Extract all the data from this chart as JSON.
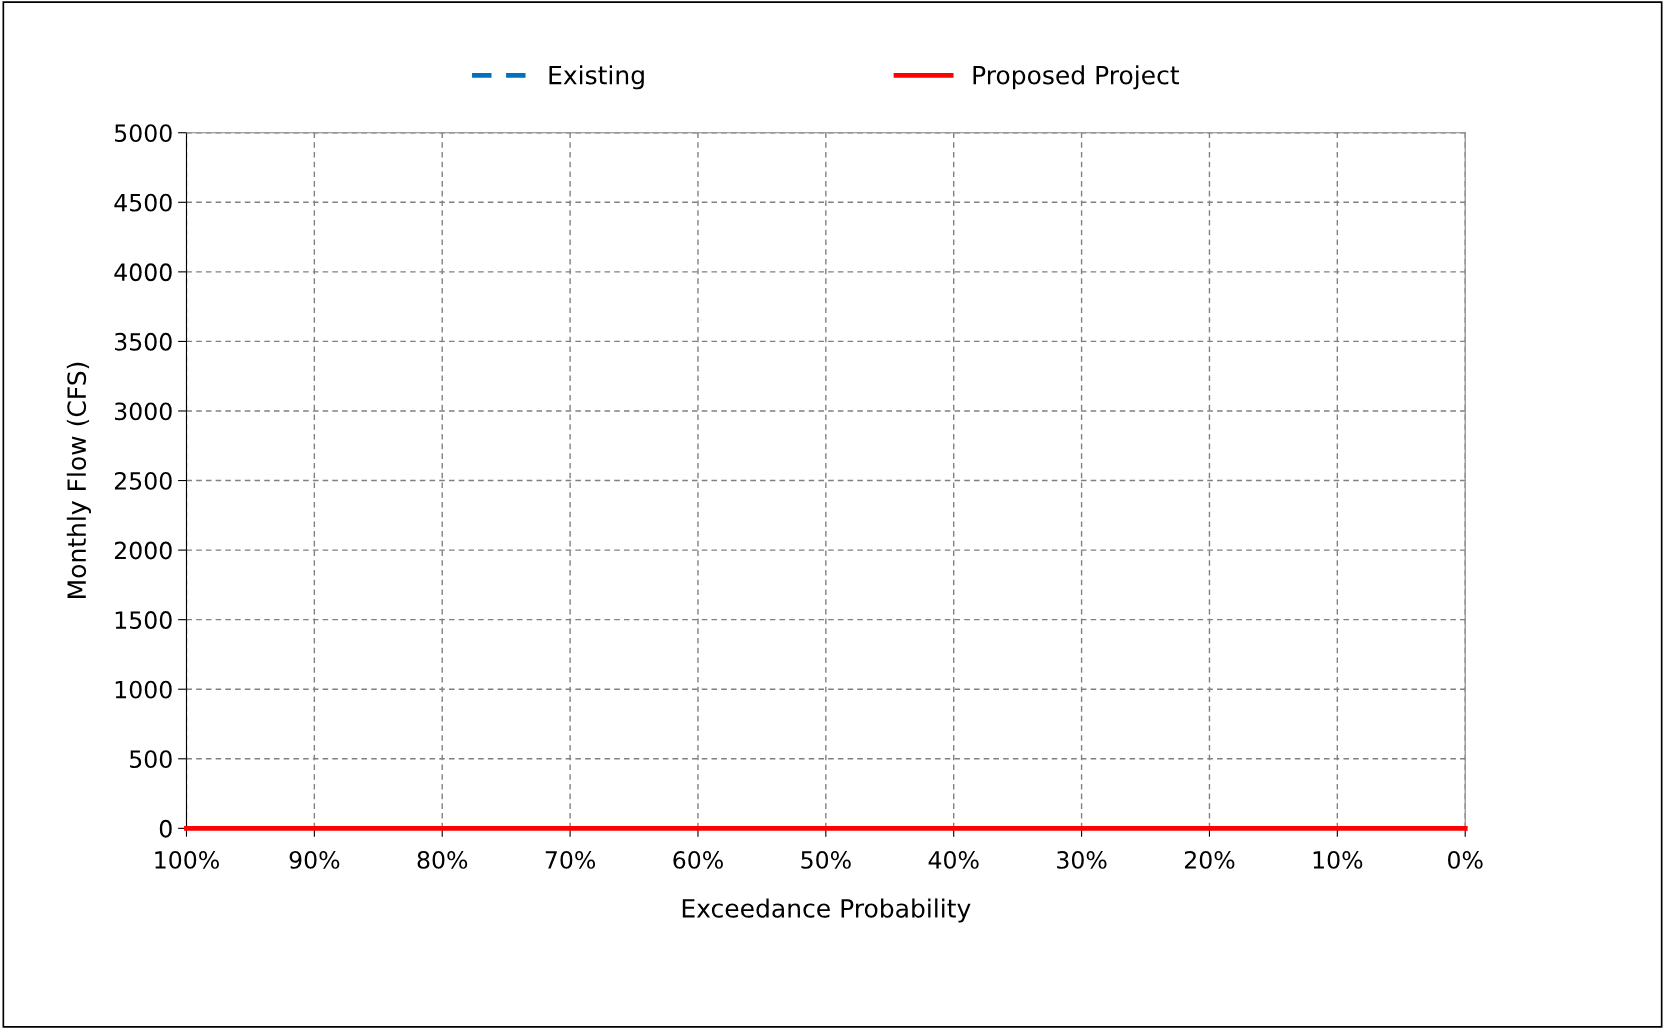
{
  "chart_data": {
    "type": "line",
    "xlabel": "Exceedance Probability",
    "ylabel": "Monthly Flow (CFS)",
    "x": [
      100,
      0
    ],
    "series": [
      {
        "name": "Existing",
        "color": "#0070c0",
        "line_style": "dashed",
        "values": [
          null,
          null
        ]
      },
      {
        "name": "Proposed Project",
        "color": "#ff0000",
        "line_style": "solid",
        "values": [
          0,
          0
        ]
      }
    ],
    "xlim": [
      100,
      0
    ],
    "xticks": [
      {
        "value": 100,
        "label": "100%"
      },
      {
        "value": 90,
        "label": "90%"
      },
      {
        "value": 80,
        "label": "80%"
      },
      {
        "value": 70,
        "label": "70%"
      },
      {
        "value": 60,
        "label": "60%"
      },
      {
        "value": 50,
        "label": "50%"
      },
      {
        "value": 40,
        "label": "40%"
      },
      {
        "value": 30,
        "label": "30%"
      },
      {
        "value": 20,
        "label": "20%"
      },
      {
        "value": 10,
        "label": "10%"
      },
      {
        "value": 0,
        "label": "0%"
      }
    ],
    "ylim": [
      0,
      5000
    ],
    "yticks": [
      0,
      500,
      1000,
      1500,
      2000,
      2500,
      3000,
      3500,
      4000,
      4500,
      5000
    ],
    "grid": true,
    "legend": "top",
    "marker": "none"
  }
}
